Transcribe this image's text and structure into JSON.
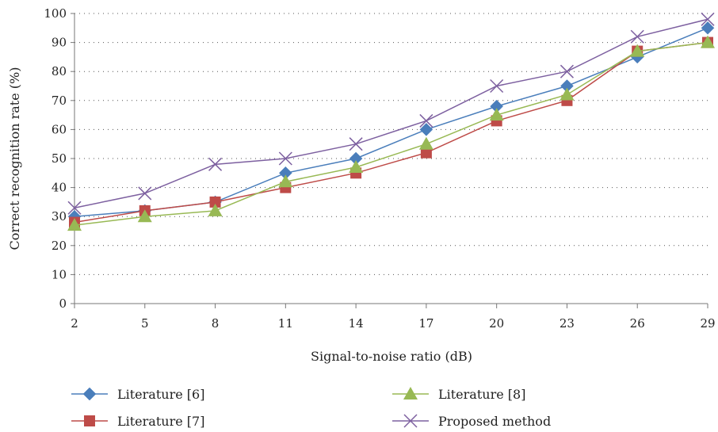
{
  "chart_data": {
    "type": "line",
    "title": "",
    "xlabel": "Signal-to-noise ratio (dB)",
    "ylabel": "Correct recognition rate (%)",
    "x": [
      2,
      5,
      8,
      11,
      14,
      17,
      20,
      23,
      26,
      29
    ],
    "xticks": [
      "2",
      "5",
      "8",
      "11",
      "14",
      "17",
      "20",
      "23",
      "26",
      "29"
    ],
    "ylim": [
      0,
      100
    ],
    "yticks": [
      "0",
      "10",
      "20",
      "30",
      "40",
      "50",
      "60",
      "70",
      "80",
      "90",
      "100"
    ],
    "grid": "horizontal-dotted",
    "legend_position": "bottom",
    "series": [
      {
        "name": "Literature [6]",
        "color": "#4a7ebb",
        "marker": "diamond",
        "values": [
          30,
          32,
          35,
          45,
          50,
          60,
          68,
          75,
          85,
          95
        ]
      },
      {
        "name": "Literature [7]",
        "color": "#be4b48",
        "marker": "square",
        "values": [
          28,
          32,
          35,
          40,
          45,
          52,
          63,
          70,
          87,
          90
        ]
      },
      {
        "name": "Literature [8]",
        "color": "#98b954",
        "marker": "triangle",
        "values": [
          27,
          30,
          32,
          42,
          47,
          55,
          65,
          72,
          87,
          90
        ]
      },
      {
        "name": "Proposed method",
        "color": "#7d60a0",
        "marker": "x",
        "values": [
          33,
          38,
          48,
          50,
          55,
          63,
          75,
          80,
          92,
          98
        ]
      }
    ]
  }
}
